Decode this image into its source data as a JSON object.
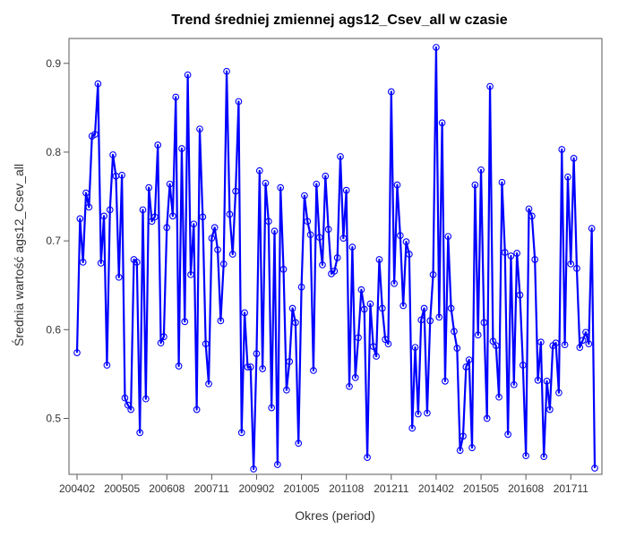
{
  "chart_data": {
    "type": "line",
    "title": "Trend średniej zmiennej ags12_Csev_all w czasie",
    "xlabel": "Okres (period)",
    "ylabel": "Średnia wartość ags12_Csev_all",
    "x_tick_labels": [
      "200402",
      "200505",
      "200608",
      "200711",
      "200902",
      "201005",
      "201108",
      "201211",
      "201402",
      "201505",
      "201608",
      "201711"
    ],
    "y_ticks": [
      0.5,
      0.6,
      0.7,
      0.8,
      0.9
    ],
    "ylim": [
      0.437,
      0.928
    ],
    "grid": false,
    "legend": "none",
    "line_color": "#0000ff",
    "marker": "open-circle",
    "start_period": "200402",
    "values": [
      0.574,
      0.725,
      0.676,
      0.754,
      0.738,
      0.818,
      0.82,
      0.877,
      0.675,
      0.728,
      0.56,
      0.735,
      0.797,
      0.773,
      0.659,
      0.774,
      0.523,
      0.515,
      0.51,
      0.679,
      0.676,
      0.484,
      0.735,
      0.522,
      0.76,
      0.722,
      0.727,
      0.808,
      0.585,
      0.592,
      0.715,
      0.764,
      0.728,
      0.862,
      0.559,
      0.804,
      0.609,
      0.887,
      0.662,
      0.719,
      0.51,
      0.826,
      0.727,
      0.584,
      0.539,
      0.703,
      0.715,
      0.69,
      0.61,
      0.674,
      0.891,
      0.73,
      0.685,
      0.756,
      0.857,
      0.484,
      0.619,
      0.558,
      0.558,
      0.443,
      0.573,
      0.779,
      0.556,
      0.765,
      0.722,
      0.512,
      0.711,
      0.448,
      0.76,
      0.668,
      0.532,
      0.564,
      0.624,
      0.608,
      0.472,
      0.648,
      0.751,
      0.722,
      0.707,
      0.554,
      0.764,
      0.704,
      0.673,
      0.773,
      0.713,
      0.663,
      0.666,
      0.681,
      0.795,
      0.703,
      0.757,
      0.536,
      0.693,
      0.546,
      0.591,
      0.645,
      0.623,
      0.456,
      0.629,
      0.581,
      0.57,
      0.679,
      0.624,
      0.589,
      0.584,
      0.868,
      0.652,
      0.763,
      0.706,
      0.627,
      0.699,
      0.685,
      0.489,
      0.58,
      0.505,
      0.611,
      0.624,
      0.506,
      0.61,
      0.662,
      0.918,
      0.614,
      0.833,
      0.542,
      0.705,
      0.624,
      0.598,
      0.579,
      0.464,
      0.48,
      0.558,
      0.566,
      0.467,
      0.763,
      0.594,
      0.78,
      0.608,
      0.5,
      0.874,
      0.587,
      0.582,
      0.524,
      0.766,
      0.687,
      0.482,
      0.683,
      0.538,
      0.686,
      0.639,
      0.56,
      0.458,
      0.736,
      0.728,
      0.679,
      0.543,
      0.586,
      0.457,
      0.542,
      0.51,
      0.582,
      0.585,
      0.529,
      0.803,
      0.583,
      0.772,
      0.674,
      0.793,
      0.669,
      0.58,
      0.588,
      0.597,
      0.584,
      0.714,
      0.444
    ]
  }
}
